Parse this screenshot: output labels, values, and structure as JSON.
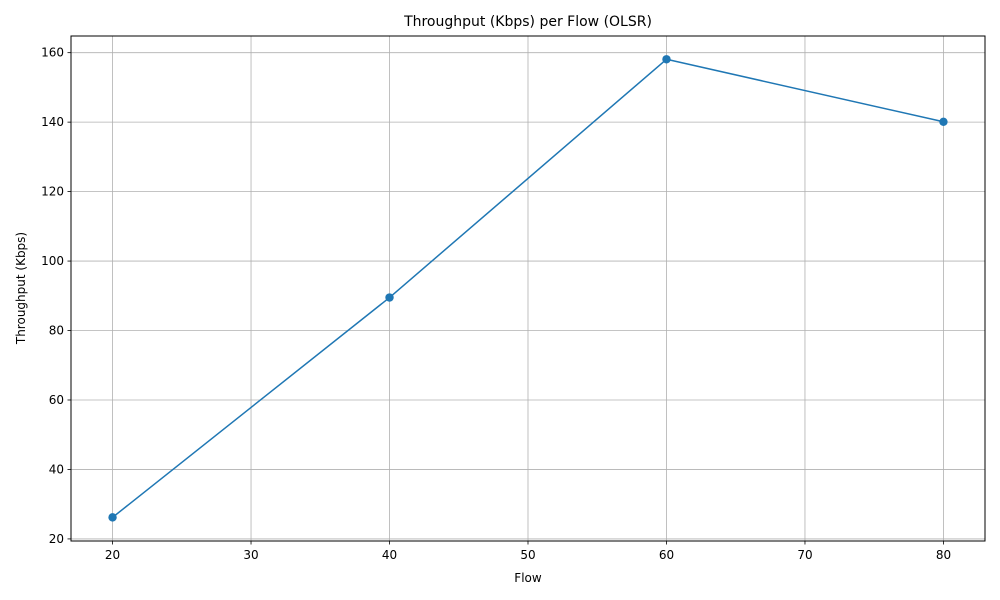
{
  "chart_data": {
    "type": "line",
    "title": "Throughput (Kbps) per Flow (OLSR)",
    "xlabel": "Flow",
    "ylabel": "Throughput (Kbps)",
    "x": [
      20,
      40,
      60,
      80
    ],
    "series": [
      {
        "values": [
          26.2,
          89.5,
          158.1,
          140.1
        ],
        "color": "#1f77b4",
        "marker": "circle"
      }
    ],
    "xlim": [
      17,
      83
    ],
    "ylim": [
      19.4,
      164.8
    ],
    "xticks": [
      20,
      30,
      40,
      50,
      60,
      70,
      80
    ],
    "yticks": [
      20,
      40,
      60,
      80,
      100,
      120,
      140,
      160
    ],
    "grid": true,
    "legend": "none"
  }
}
